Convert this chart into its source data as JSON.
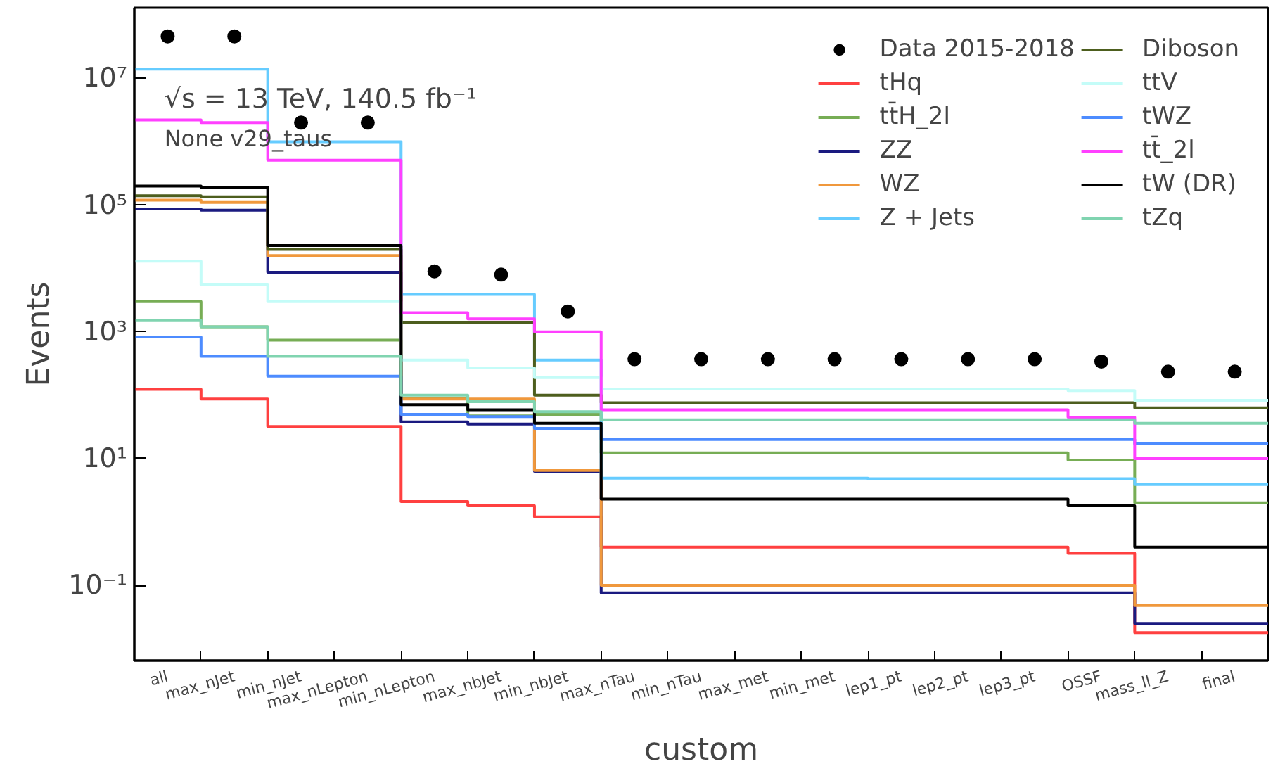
{
  "chart_data": {
    "type": "step",
    "xlabel": "custom",
    "ylabel": "Events",
    "log": "y",
    "legend": "top right",
    "annotations": [
      "√s = 13 TeV, 140.5 fb⁻¹",
      "None v29_taus"
    ],
    "categories": [
      "all",
      "max_nJet",
      "min_nJet",
      "max_nLepton",
      "min_nLepton",
      "max_nbJet",
      "min_nbJet",
      "max_nTau",
      "min_nTau",
      "max_met",
      "min_met",
      "lep1_pt",
      "lep2_pt",
      "lep3_pt",
      "OSSF",
      "mass_ll_Z",
      "final"
    ],
    "ylim": [
      0.0065,
      130000000
    ],
    "yticks": [
      {
        "value": 0.1,
        "label": "10⁻¹"
      },
      {
        "value": 10,
        "label": "10¹"
      },
      {
        "value": 1000,
        "label": "10³"
      },
      {
        "value": 100000,
        "label": "10⁵"
      },
      {
        "value": 10000000,
        "label": "10⁷"
      }
    ],
    "series": [
      {
        "name": "Data 2015-2018",
        "type": "scatter",
        "marker": "circle",
        "color": "#000000",
        "values": [
          46000000,
          46000000,
          2000000,
          2000000,
          9000,
          8000,
          2100,
          370,
          370,
          370,
          370,
          370,
          370,
          370,
          340,
          235,
          235
        ]
      },
      {
        "name": "tHq",
        "color": "#ff4040",
        "values": [
          124,
          87,
          32,
          32,
          2.1,
          1.8,
          1.2,
          0.4,
          0.4,
          0.4,
          0.4,
          0.4,
          0.4,
          0.4,
          0.32,
          0.018,
          0.018
        ]
      },
      {
        "name": "tt̄H_2l",
        "color": "#77ad55",
        "values": [
          3000,
          1200,
          740,
          740,
          90,
          47,
          50,
          12.3,
          12.3,
          12.3,
          12.3,
          12.3,
          12.3,
          12.3,
          9.5,
          2.0,
          2.0
        ]
      },
      {
        "name": "ZZ",
        "color": "#1a1a80",
        "values": [
          87000,
          83000,
          8700,
          8700,
          38,
          35,
          6.3,
          0.076,
          0.076,
          0.076,
          0.076,
          0.076,
          0.076,
          0.076,
          0.076,
          0.025,
          0.025
        ]
      },
      {
        "name": "WZ",
        "color": "#f0983c",
        "values": [
          120000,
          110000,
          16000,
          16000,
          87,
          87,
          6.5,
          0.1,
          0.1,
          0.1,
          0.1,
          0.1,
          0.1,
          0.1,
          0.1,
          0.048,
          0.048
        ]
      },
      {
        "name": "Z + Jets",
        "color": "#66ccff",
        "values": [
          14000000,
          14000000,
          1000000,
          1000000,
          3900,
          3900,
          360,
          4.9,
          4.9,
          4.9,
          4.9,
          4.8,
          4.8,
          4.8,
          4.8,
          3.9,
          3.9
        ]
      },
      {
        "name": "Diboson",
        "color": "#4d5e1e",
        "values": [
          140000,
          135000,
          20000,
          20000,
          1400,
          1400,
          100,
          76,
          76,
          76,
          76,
          76,
          76,
          76,
          76,
          63,
          63
        ]
      },
      {
        "name": "ttV",
        "color": "#c4fcf8",
        "values": [
          13000,
          5500,
          3000,
          3000,
          360,
          270,
          190,
          125,
          125,
          125,
          125,
          125,
          125,
          125,
          118,
          83,
          83
        ]
      },
      {
        "name": "tWZ",
        "color": "#4d8cff",
        "values": [
          830,
          410,
          200,
          200,
          50,
          46,
          30,
          20,
          20,
          20,
          20,
          20,
          20,
          20,
          20,
          17,
          17
        ]
      },
      {
        "name": "tt̄_2l",
        "color": "#ff40ff",
        "values": [
          2200000,
          2000000,
          510000,
          510000,
          2000,
          1600,
          1000,
          59,
          59,
          59,
          59,
          59,
          59,
          59,
          45,
          10,
          10
        ]
      },
      {
        "name": "tW (DR)",
        "color": "#000000",
        "values": [
          200000,
          190000,
          23000,
          23000,
          71,
          59,
          36,
          2.3,
          2.3,
          2.3,
          2.3,
          2.3,
          2.3,
          2.3,
          1.8,
          0.4,
          0.4
        ]
      },
      {
        "name": "tZq",
        "color": "#80d4b0",
        "values": [
          1500,
          1200,
          410,
          410,
          100,
          79,
          55,
          41,
          41,
          41,
          41,
          41,
          41,
          41,
          41,
          36,
          36
        ]
      }
    ]
  }
}
